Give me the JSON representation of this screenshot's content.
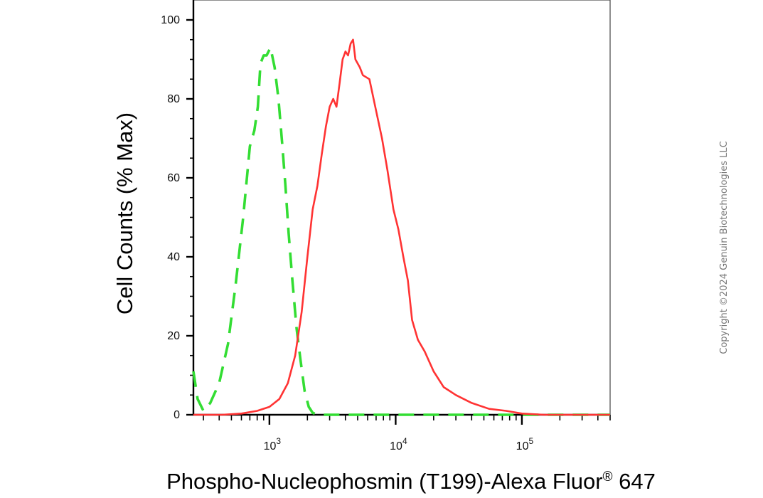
{
  "chart_data": {
    "type": "line",
    "title": "",
    "xlabel": "Phospho-Nucleophosmin (T199)-Alexa Fluor",
    "xlabel_superscript": "®",
    "xlabel_suffix": " 647",
    "ylabel": "Cell Counts (% Max)",
    "x_scale": "log",
    "xlim": [
      250,
      500000
    ],
    "ylim": [
      0,
      100
    ],
    "grid": false,
    "legend": "none",
    "y_ticks": [
      {
        "value": 0,
        "label": "0"
      },
      {
        "value": 20,
        "label": "20"
      },
      {
        "value": 40,
        "label": "40"
      },
      {
        "value": 60,
        "label": "60"
      },
      {
        "value": 80,
        "label": "80"
      },
      {
        "value": 100,
        "label": "100"
      }
    ],
    "x_ticks": [
      {
        "value": 1000,
        "label": "10",
        "exponent": "3"
      },
      {
        "value": 10000,
        "label": "10",
        "exponent": "4"
      },
      {
        "value": 100000,
        "label": "10",
        "exponent": "5"
      }
    ],
    "series": [
      {
        "color": "#33dd33",
        "style": "dashed",
        "points": [
          [
            250,
            11
          ],
          [
            270,
            4
          ],
          [
            300,
            1
          ],
          [
            340,
            3
          ],
          [
            400,
            8
          ],
          [
            470,
            18
          ],
          [
            540,
            33
          ],
          [
            620,
            50
          ],
          [
            700,
            68
          ],
          [
            760,
            72
          ],
          [
            810,
            78
          ],
          [
            850,
            89
          ],
          [
            900,
            91
          ],
          [
            950,
            91
          ],
          [
            1020,
            93
          ],
          [
            1100,
            88
          ],
          [
            1180,
            80
          ],
          [
            1260,
            69
          ],
          [
            1340,
            58
          ],
          [
            1420,
            46
          ],
          [
            1520,
            34
          ],
          [
            1640,
            22
          ],
          [
            1760,
            14
          ],
          [
            1900,
            6
          ],
          [
            2050,
            2
          ],
          [
            2200,
            0.5
          ],
          [
            2400,
            0
          ],
          [
            500000,
            0
          ]
        ]
      },
      {
        "color": "#ff3333",
        "style": "solid",
        "points": [
          [
            250,
            0
          ],
          [
            420,
            0
          ],
          [
            600,
            0.3
          ],
          [
            800,
            1
          ],
          [
            1000,
            2
          ],
          [
            1200,
            4
          ],
          [
            1400,
            8
          ],
          [
            1600,
            15
          ],
          [
            1800,
            26
          ],
          [
            2000,
            40
          ],
          [
            2200,
            52
          ],
          [
            2400,
            58
          ],
          [
            2600,
            66
          ],
          [
            2800,
            73
          ],
          [
            3000,
            78
          ],
          [
            3200,
            80
          ],
          [
            3400,
            78
          ],
          [
            3600,
            84
          ],
          [
            3800,
            90
          ],
          [
            4000,
            92
          ],
          [
            4200,
            91
          ],
          [
            4400,
            94
          ],
          [
            4600,
            95
          ],
          [
            4800,
            90
          ],
          [
            5200,
            88
          ],
          [
            5500,
            86
          ],
          [
            6200,
            85
          ],
          [
            7000,
            77
          ],
          [
            7800,
            70
          ],
          [
            8600,
            62
          ],
          [
            9600,
            52
          ],
          [
            10500,
            47
          ],
          [
            11500,
            40
          ],
          [
            12500,
            34
          ],
          [
            13500,
            24
          ],
          [
            15000,
            19
          ],
          [
            17000,
            16
          ],
          [
            20000,
            11
          ],
          [
            24000,
            7
          ],
          [
            30000,
            5
          ],
          [
            40000,
            3
          ],
          [
            55000,
            1.5
          ],
          [
            75000,
            1
          ],
          [
            100000,
            0.3
          ],
          [
            150000,
            0
          ],
          [
            500000,
            0
          ]
        ]
      }
    ]
  },
  "watermark": "Copyright ©2024 Genuin Biotechnologies LLC"
}
